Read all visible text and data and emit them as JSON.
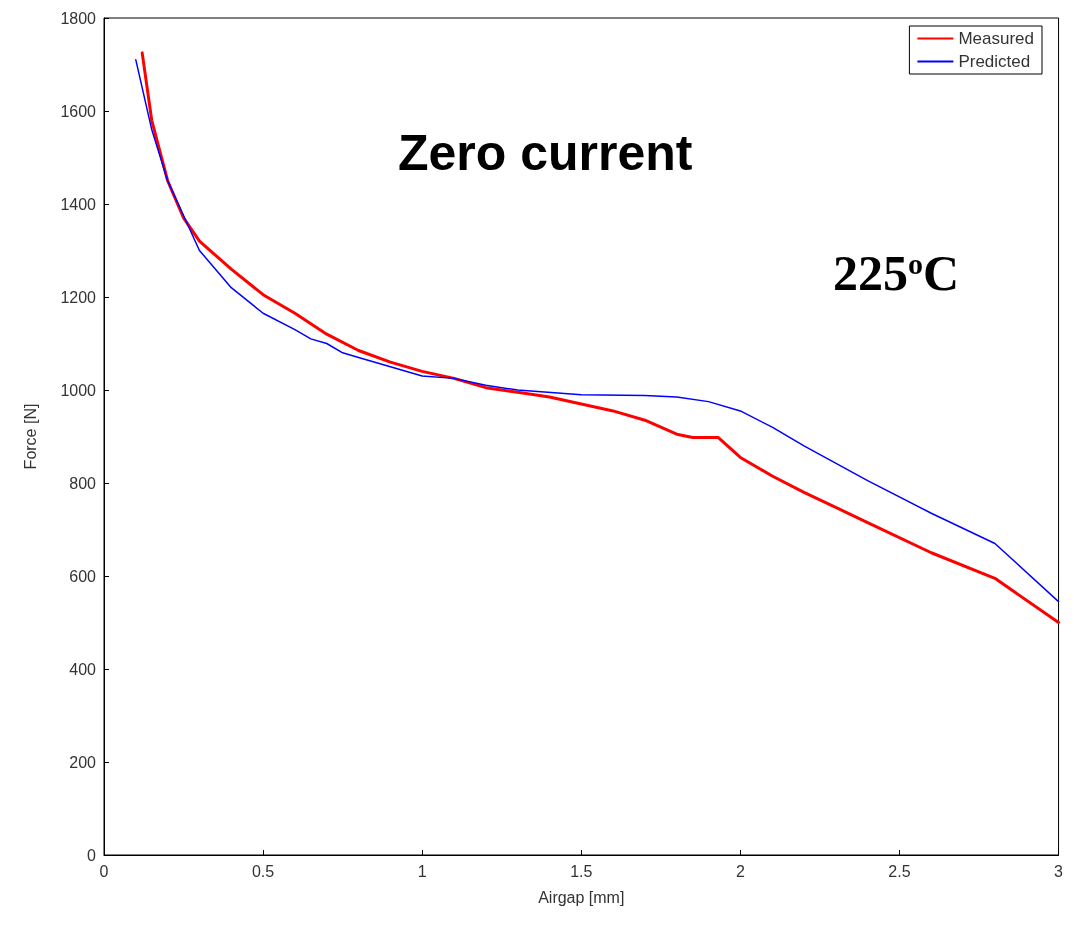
{
  "chart_data": {
    "type": "line",
    "xlabel": "Airgap [mm]",
    "ylabel": "Force [N]",
    "xlim": [
      0,
      3
    ],
    "xticks": [
      0,
      0.5,
      1,
      1.5,
      2,
      2.5,
      3
    ],
    "ylim": [
      0,
      1800
    ],
    "yticks": [
      0,
      200,
      400,
      600,
      800,
      1000,
      1200,
      1400,
      1600,
      1800
    ],
    "grid": false,
    "legend": "top right",
    "marker": "none",
    "line_style": "solid",
    "annotations": [
      "Zero current",
      "225$^{o}$C"
    ],
    "series": [
      {
        "name": "Measured",
        "color": "#ff0000",
        "x": [
          0.12,
          0.15,
          0.2,
          0.25,
          0.3,
          0.4,
          0.5,
          0.6,
          0.7,
          0.8,
          0.9,
          1.0,
          1.1,
          1.2,
          1.3,
          1.4,
          1.5,
          1.6,
          1.7,
          1.8,
          1.85,
          1.93,
          2.0,
          2.1,
          2.2,
          2.4,
          2.6,
          2.8,
          3.0
        ],
        "values": [
          1725,
          1580,
          1450,
          1370,
          1320,
          1260,
          1205,
          1165,
          1120,
          1085,
          1060,
          1040,
          1025,
          1005,
          995,
          985,
          970,
          955,
          935,
          905,
          898,
          898,
          855,
          815,
          780,
          715,
          650,
          595,
          500
        ]
      },
      {
        "name": "Predicted",
        "color": "#0000ff",
        "x": [
          0.1,
          0.15,
          0.2,
          0.3,
          0.4,
          0.5,
          0.6,
          0.65,
          0.7,
          0.75,
          0.8,
          0.9,
          1.0,
          1.1,
          1.2,
          1.3,
          1.5,
          1.7,
          1.8,
          1.9,
          2.0,
          2.1,
          2.2,
          2.4,
          2.6,
          2.8,
          3.0
        ],
        "values": [
          1710,
          1560,
          1450,
          1300,
          1220,
          1165,
          1130,
          1110,
          1100,
          1080,
          1070,
          1050,
          1030,
          1025,
          1010,
          1000,
          990,
          988,
          985,
          975,
          955,
          920,
          880,
          805,
          735,
          670,
          545
        ]
      }
    ]
  }
}
